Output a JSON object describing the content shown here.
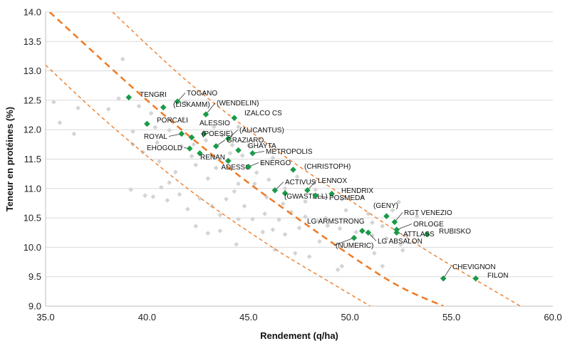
{
  "chart_data": {
    "type": "scatter",
    "xlabel": "Rendement (q/ha)",
    "ylabel": "Teneur en protéines (%)",
    "xlim": [
      35.0,
      60.0
    ],
    "ylim": [
      9.0,
      14.0
    ],
    "xticks": [
      "35.0",
      "40.0",
      "45.0",
      "50.0",
      "55.0",
      "60.0"
    ],
    "yticks": [
      "9.0",
      "9.5",
      "10.0",
      "10.5",
      "11.0",
      "11.5",
      "12.0",
      "12.5",
      "13.0",
      "13.5",
      "14.0"
    ],
    "grid": "horizontal",
    "colors": {
      "highlight": "#1a9a48",
      "background_points": "#d4d4d4",
      "curves": "#ee7d2a"
    },
    "curves": [
      {
        "style": "dashed-thin",
        "points": [
          [
            38.3,
            14.0
          ],
          [
            42,
            12.82
          ],
          [
            46,
            11.74
          ],
          [
            50,
            10.8
          ],
          [
            54,
            9.9
          ],
          [
            58.4,
            9.0
          ]
        ]
      },
      {
        "style": "dashed-thick",
        "points": [
          [
            35.2,
            14.0
          ],
          [
            40,
            12.5
          ],
          [
            44,
            11.36
          ],
          [
            48,
            10.35
          ],
          [
            52,
            9.42
          ],
          [
            54.6,
            9.0
          ]
        ]
      },
      {
        "style": "dashed-thin",
        "points": [
          [
            35.0,
            13.1
          ],
          [
            38,
            12.14
          ],
          [
            42,
            11.0
          ],
          [
            46,
            10.04
          ],
          [
            49,
            9.41
          ],
          [
            51.0,
            9.0
          ]
        ]
      }
    ],
    "highlighted": [
      {
        "label": "TENGRI",
        "x": 39.1,
        "y": 12.55
      },
      {
        "label": "TOGANO",
        "x": 41.5,
        "y": 12.48
      },
      {
        "label": "(LISKAMM)",
        "x": 40.8,
        "y": 12.38
      },
      {
        "label": "(WENDELIN)",
        "x": 42.9,
        "y": 12.26
      },
      {
        "label": "IZALCO CS",
        "x": 44.3,
        "y": 12.2
      },
      {
        "label": "PORCALI",
        "x": 40.0,
        "y": 12.1
      },
      {
        "label": "ALESSIO",
        "x": 42.8,
        "y": 11.93
      },
      {
        "label": "(ALICANTUS)",
        "x": 44.0,
        "y": 11.85
      },
      {
        "label": "ROYAL",
        "x": 41.7,
        "y": 11.93
      },
      {
        "label": "(POESIE)",
        "x": 42.2,
        "y": 11.87
      },
      {
        "label": "GRAZIARO",
        "x": 43.4,
        "y": 11.72
      },
      {
        "label": "GHAYTA",
        "x": 44.5,
        "y": 11.65
      },
      {
        "label": "METROPOLIS",
        "x": 45.2,
        "y": 11.6
      },
      {
        "label": "EHOGOLD",
        "x": 42.1,
        "y": 11.68
      },
      {
        "label": "RENAN",
        "x": 42.6,
        "y": 11.6
      },
      {
        "label": "ADESSO",
        "x": 44.0,
        "y": 11.47
      },
      {
        "label": "ENERGO",
        "x": 45.0,
        "y": 11.37
      },
      {
        "label": "(CHRISTOPH)",
        "x": 47.2,
        "y": 11.32
      },
      {
        "label": "ACTIVUS",
        "x": 46.3,
        "y": 10.97
      },
      {
        "label": "LENNOX",
        "x": 47.9,
        "y": 10.97
      },
      {
        "label": "HENDRIX",
        "x": 49.1,
        "y": 10.91
      },
      {
        "label": "(GWASTELL)",
        "x": 46.8,
        "y": 10.92
      },
      {
        "label": "POSMEDA",
        "x": 48.3,
        "y": 10.88
      },
      {
        "label": "(GENY)",
        "x": 51.8,
        "y": 10.53
      },
      {
        "label": "RGT VENEZIO",
        "x": 52.2,
        "y": 10.43
      },
      {
        "label": "ORLOGE",
        "x": 52.3,
        "y": 10.3
      },
      {
        "label": "LG ARMSTRONG",
        "x": 50.6,
        "y": 10.28
      },
      {
        "label": "RUBISKO",
        "x": 53.8,
        "y": 10.22
      },
      {
        "label": "ATTLASS",
        "x": 52.3,
        "y": 10.25
      },
      {
        "label": "LG ABSALON",
        "x": 50.9,
        "y": 10.25
      },
      {
        "label": "(NUMERIC)",
        "x": 50.2,
        "y": 10.16
      },
      {
        "label": "CHEVIGNON",
        "x": 54.6,
        "y": 9.47
      },
      {
        "label": "FILON",
        "x": 56.2,
        "y": 9.47
      }
    ],
    "background": [
      [
        35.4,
        12.47
      ],
      [
        35.7,
        12.12
      ],
      [
        36.4,
        11.93
      ],
      [
        36.6,
        12.37
      ],
      [
        38.1,
        12.35
      ],
      [
        38.6,
        12.53
      ],
      [
        38.8,
        13.2
      ],
      [
        39.3,
        11.97
      ],
      [
        39.6,
        12.4
      ],
      [
        40.2,
        12.28
      ],
      [
        40.4,
        12.04
      ],
      [
        40.5,
        11.78
      ],
      [
        41.1,
        11.99
      ],
      [
        41.7,
        11.72
      ],
      [
        42.3,
        11.75
      ],
      [
        41.8,
        12.19
      ],
      [
        42.9,
        11.82
      ],
      [
        43.7,
        11.9
      ],
      [
        44.2,
        11.74
      ],
      [
        44.7,
        11.56
      ],
      [
        45.7,
        11.43
      ],
      [
        45.4,
        11.27
      ],
      [
        46.0,
        11.15
      ],
      [
        46.8,
        11.0
      ],
      [
        45.3,
        11.08
      ],
      [
        44.5,
        11.08
      ],
      [
        43.4,
        11.35
      ],
      [
        43.0,
        11.17
      ],
      [
        42.4,
        11.4
      ],
      [
        41.1,
        11.1
      ],
      [
        40.6,
        11.46
      ],
      [
        39.8,
        11.62
      ],
      [
        39.3,
        11.75
      ],
      [
        39.9,
        10.88
      ],
      [
        40.3,
        10.86
      ],
      [
        41.0,
        10.8
      ],
      [
        41.6,
        10.9
      ],
      [
        42.0,
        10.65
      ],
      [
        42.6,
        10.83
      ],
      [
        43.2,
        10.7
      ],
      [
        43.6,
        10.55
      ],
      [
        44.3,
        10.95
      ],
      [
        44.8,
        10.7
      ],
      [
        45.2,
        10.48
      ],
      [
        45.8,
        10.57
      ],
      [
        46.5,
        10.47
      ],
      [
        47.1,
        10.6
      ],
      [
        47.8,
        10.52
      ],
      [
        48.4,
        10.45
      ],
      [
        48.9,
        10.37
      ],
      [
        49.5,
        10.32
      ],
      [
        50.3,
        10.26
      ],
      [
        51.1,
        10.2
      ],
      [
        51.8,
        10.15
      ],
      [
        52.5,
        10.05
      ],
      [
        52.4,
        10.77
      ],
      [
        52.8,
        10.2
      ],
      [
        52.6,
        9.95
      ],
      [
        51.6,
        9.68
      ],
      [
        49.6,
        9.68
      ],
      [
        49.4,
        9.62
      ],
      [
        48.0,
        9.84
      ],
      [
        47.3,
        9.9
      ],
      [
        46.3,
        9.96
      ],
      [
        44.4,
        10.05
      ],
      [
        43.0,
        10.24
      ],
      [
        42.4,
        10.36
      ],
      [
        43.6,
        10.28
      ],
      [
        47.5,
        10.33
      ],
      [
        48.5,
        10.1
      ],
      [
        48.8,
        10.5
      ],
      [
        49.8,
        10.63
      ],
      [
        45.7,
        10.26
      ],
      [
        46.8,
        10.22
      ],
      [
        45.0,
        11.73
      ],
      [
        44.5,
        12.05
      ],
      [
        43.3,
        12.05
      ],
      [
        41.9,
        12.47
      ],
      [
        40.7,
        12.58
      ],
      [
        42.8,
        12.62
      ],
      [
        44.1,
        11.6
      ],
      [
        46.2,
        11.52
      ],
      [
        47.4,
        11.2
      ],
      [
        49.6,
        10.82
      ],
      [
        50.9,
        10.57
      ],
      [
        51.1,
        10.42
      ],
      [
        53.3,
        10.53
      ],
      [
        39.2,
        10.98
      ],
      [
        40.7,
        11.02
      ],
      [
        41.4,
        11.28
      ],
      [
        42.2,
        11.55
      ],
      [
        45.9,
        10.85
      ],
      [
        47.8,
        10.78
      ],
      [
        48.3,
        10.98
      ],
      [
        46.7,
        10.74
      ],
      [
        44.5,
        10.48
      ],
      [
        43.9,
        10.82
      ],
      [
        46.2,
        10.3
      ],
      [
        51.2,
        9.9
      ],
      [
        50.6,
        10.86
      ],
      [
        52.1,
        10.63
      ],
      [
        51.6,
        10.36
      ]
    ]
  }
}
